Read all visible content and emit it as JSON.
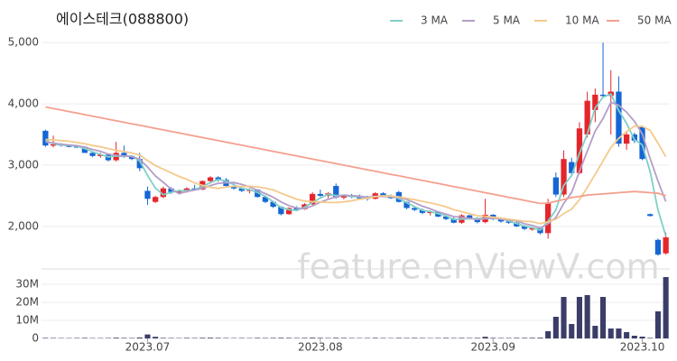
{
  "chart_data": {
    "type": "candlestick",
    "title": "에이스테크(088800)",
    "watermark": "feature.enViewV.com",
    "up_color": "#e5252c",
    "down_color": "#1466d4",
    "volume_color": "#3b3d68",
    "categories": [
      null,
      null,
      null,
      null,
      null,
      null,
      null,
      null,
      null,
      null,
      null,
      null,
      null,
      "2023.07",
      null,
      null,
      null,
      null,
      null,
      null,
      null,
      null,
      null,
      null,
      null,
      null,
      null,
      null,
      null,
      null,
      null,
      null,
      null,
      null,
      null,
      "2023.08",
      null,
      null,
      null,
      null,
      null,
      null,
      null,
      null,
      null,
      null,
      null,
      null,
      null,
      null,
      null,
      null,
      null,
      null,
      null,
      null,
      null,
      "2023.09",
      null,
      null,
      null,
      null,
      null,
      null,
      null,
      null,
      null,
      null,
      null,
      null,
      null,
      null,
      null,
      null,
      null,
      null,
      "2023.10",
      null,
      null,
      null
    ],
    "open": [
      3560,
      3330,
      3340,
      3320,
      3310,
      3300,
      3200,
      3150,
      3170,
      3080,
      3200,
      3150,
      3100,
      2580,
      2400,
      2480,
      2620,
      2560,
      2570,
      2620,
      2600,
      2740,
      2800,
      2760,
      2660,
      2620,
      2580,
      2600,
      2480,
      2400,
      2320,
      2200,
      2300,
      2280,
      2360,
      2530,
      2500,
      2660,
      2470,
      2510,
      2480,
      2470,
      2450,
      2540,
      2500,
      2560,
      2400,
      2300,
      2270,
      2220,
      2240,
      2160,
      2120,
      2060,
      2180,
      2130,
      2070,
      2190,
      2120,
      2080,
      2060,
      2000,
      1960,
      1970,
      1890,
      2800,
      2520,
      3050,
      2870,
      3500,
      3900,
      4150,
      4130,
      4200,
      3350,
      3500,
      3620,
      2200,
      1780,
      1560
    ],
    "high": [
      3580,
      3480,
      3360,
      3340,
      3330,
      3310,
      3220,
      3200,
      3180,
      3380,
      3320,
      3160,
      3200,
      2650,
      2500,
      2650,
      2640,
      2600,
      2640,
      2680,
      2750,
      2820,
      2820,
      2790,
      2700,
      2650,
      2620,
      2610,
      2500,
      2420,
      2330,
      2310,
      2330,
      2380,
      2560,
      2600,
      2560,
      2700,
      2520,
      2530,
      2520,
      2500,
      2560,
      2560,
      2520,
      2580,
      2410,
      2330,
      2290,
      2260,
      2250,
      2180,
      2150,
      2200,
      2190,
      2150,
      2450,
      2200,
      2140,
      2100,
      2080,
      2020,
      1990,
      1980,
      2450,
      2880,
      3240,
      3120,
      3700,
      4200,
      4250,
      5000,
      4550,
      4450,
      3550,
      3530,
      3640,
      2210,
      1800,
      1900
    ],
    "low": [
      3300,
      3290,
      3300,
      3290,
      3280,
      3200,
      3130,
      3120,
      3060,
      3060,
      3120,
      3080,
      2900,
      2350,
      2380,
      2460,
      2530,
      2520,
      2550,
      2580,
      2590,
      2700,
      2730,
      2650,
      2600,
      2560,
      2540,
      2470,
      2380,
      2300,
      2180,
      2190,
      2260,
      2270,
      2350,
      2480,
      2460,
      2450,
      2440,
      2460,
      2440,
      2420,
      2440,
      2480,
      2450,
      2390,
      2280,
      2250,
      2200,
      2180,
      2150,
      2100,
      2050,
      2040,
      2110,
      2050,
      2050,
      2100,
      2060,
      2040,
      1990,
      1940,
      1930,
      1870,
      1800,
      2480,
      2480,
      2830,
      2850,
      3450,
      3700,
      4100,
      3500,
      3300,
      3250,
      3360,
      3080,
      2160,
      1520,
      1540
    ],
    "close": [
      3320,
      3340,
      3320,
      3310,
      3300,
      3200,
      3150,
      3170,
      3080,
      3200,
      3150,
      3100,
      2950,
      2450,
      2480,
      2620,
      2560,
      2570,
      2620,
      2600,
      2740,
      2800,
      2760,
      2660,
      2620,
      2580,
      2600,
      2480,
      2400,
      2320,
      2200,
      2300,
      2280,
      2360,
      2530,
      2500,
      2540,
      2470,
      2510,
      2480,
      2470,
      2450,
      2540,
      2500,
      2460,
      2400,
      2300,
      2270,
      2220,
      2240,
      2160,
      2120,
      2060,
      2180,
      2130,
      2070,
      2190,
      2120,
      2080,
      2060,
      2000,
      1960,
      1970,
      1890,
      2390,
      2520,
      3100,
      2870,
      3600,
      4050,
      4150,
      4130,
      4200,
      3350,
      3500,
      3400,
      3100,
      2170,
      1540,
      1820
    ],
    "volume": [
      300000,
      250000,
      200000,
      200000,
      250000,
      300000,
      200000,
      200000,
      250000,
      400000,
      300000,
      250000,
      500000,
      2200000,
      900000,
      300000,
      250000,
      200000,
      300000,
      250000,
      350000,
      400000,
      300000,
      250000,
      200000,
      250000,
      200000,
      300000,
      250000,
      300000,
      350000,
      300000,
      250000,
      300000,
      400000,
      300000,
      250000,
      350000,
      300000,
      250000,
      200000,
      250000,
      300000,
      250000,
      200000,
      300000,
      250000,
      300000,
      250000,
      200000,
      250000,
      300000,
      250000,
      300000,
      250000,
      300000,
      900000,
      300000,
      250000,
      250000,
      300000,
      300000,
      350000,
      400000,
      4000000,
      12000000,
      23000000,
      8000000,
      23000000,
      24000000,
      7000000,
      23000000,
      5500000,
      5500000,
      3500000,
      1500000,
      1000000,
      300000,
      15000000,
      34000000
    ],
    "series": [
      {
        "name": "3 MA",
        "color": "#7fd0c8",
        "values": [
          3400,
          3350,
          3327,
          3323,
          3310,
          3270,
          3217,
          3173,
          3133,
          3150,
          3143,
          3150,
          3067,
          2833,
          2627,
          2517,
          2553,
          2583,
          2583,
          2597,
          2653,
          2713,
          2767,
          2740,
          2680,
          2620,
          2600,
          2553,
          2493,
          2400,
          2307,
          2273,
          2260,
          2313,
          2390,
          2463,
          2523,
          2503,
          2507,
          2487,
          2487,
          2467,
          2487,
          2497,
          2500,
          2453,
          2387,
          2323,
          2263,
          2243,
          2207,
          2173,
          2113,
          2120,
          2123,
          2127,
          2130,
          2127,
          2130,
          2087,
          2047,
          2007,
          1977,
          1940,
          2083,
          2267,
          2670,
          2830,
          3190,
          3507,
          3933,
          4110,
          4160,
          3893,
          3683,
          3417,
          3333,
          2890,
          2270,
          1843
        ]
      },
      {
        "name": "5 MA",
        "color": "#b49ec8",
        "values": [
          3380,
          3360,
          3340,
          3330,
          3318,
          3294,
          3256,
          3226,
          3180,
          3160,
          3150,
          3140,
          3096,
          2970,
          2826,
          2720,
          2612,
          2536,
          2570,
          2594,
          2618,
          2666,
          2704,
          2712,
          2716,
          2684,
          2644,
          2588,
          2536,
          2476,
          2400,
          2340,
          2300,
          2292,
          2334,
          2394,
          2442,
          2480,
          2510,
          2500,
          2494,
          2476,
          2490,
          2488,
          2484,
          2470,
          2440,
          2386,
          2330,
          2286,
          2238,
          2202,
          2160,
          2152,
          2130,
          2112,
          2126,
          2138,
          2118,
          2104,
          2090,
          2044,
          2014,
          1976,
          2042,
          2146,
          2374,
          2554,
          2896,
          3228,
          3554,
          3760,
          4026,
          3976,
          3866,
          3716,
          3510,
          3104,
          2742,
          2406
        ]
      },
      {
        "name": "10 MA",
        "color": "#f4c98c",
        "values": [
          3420,
          3410,
          3400,
          3390,
          3370,
          3350,
          3320,
          3300,
          3270,
          3239,
          3222,
          3198,
          3161,
          3075,
          2993,
          2935,
          2876,
          2816,
          2770,
          2710,
          2669,
          2639,
          2620,
          2641,
          2655,
          2651,
          2655,
          2646,
          2624,
          2596,
          2542,
          2492,
          2444,
          2414,
          2405,
          2397,
          2391,
          2390,
          2401,
          2417,
          2444,
          2459,
          2485,
          2499,
          2492,
          2482,
          2458,
          2438,
          2409,
          2385,
          2354,
          2321,
          2273,
          2241,
          2208,
          2175,
          2164,
          2149,
          2135,
          2117,
          2101,
          2085,
          2076,
          2047,
          2073,
          2118,
          2209,
          2284,
          2436,
          2635,
          2850,
          3067,
          3290,
          3436,
          3547,
          3635,
          3635,
          3565,
          3359,
          3136
        ]
      },
      {
        "name": "50 MA",
        "color": "#f3a08e",
        "values": [
          3950,
          3925,
          3900,
          3875,
          3850,
          3825,
          3800,
          3775,
          3750,
          3725,
          3700,
          3675,
          3650,
          3625,
          3600,
          3575,
          3550,
          3525,
          3500,
          3475,
          3450,
          3425,
          3400,
          3375,
          3350,
          3325,
          3300,
          3275,
          3250,
          3225,
          3200,
          3175,
          3150,
          3125,
          3100,
          3075,
          3050,
          3025,
          3000,
          2975,
          2950,
          2925,
          2900,
          2875,
          2850,
          2825,
          2800,
          2775,
          2750,
          2725,
          2700,
          2675,
          2650,
          2625,
          2600,
          2575,
          2550,
          2525,
          2500,
          2475,
          2450,
          2425,
          2400,
          2375,
          2380,
          2410,
          2440,
          2470,
          2490,
          2510,
          2520,
          2530,
          2540,
          2550,
          2560,
          2570,
          2560,
          2550,
          2540,
          2500
        ]
      }
    ],
    "ylim": [
      1320,
      5180
    ],
    "yticks": [
      {
        "value": 2000,
        "label": "2,000"
      },
      {
        "value": 3000,
        "label": "3,000"
      },
      {
        "value": 4000,
        "label": "4,000"
      },
      {
        "value": 5000,
        "label": "5,000"
      }
    ],
    "volume_ylim": [
      0,
      37500000
    ],
    "volume_yticks": [
      {
        "value": 0,
        "label": "0"
      },
      {
        "value": 10000000,
        "label": "10M"
      },
      {
        "value": 20000000,
        "label": "20M"
      },
      {
        "value": 30000000,
        "label": "30M"
      }
    ],
    "grid": true
  }
}
